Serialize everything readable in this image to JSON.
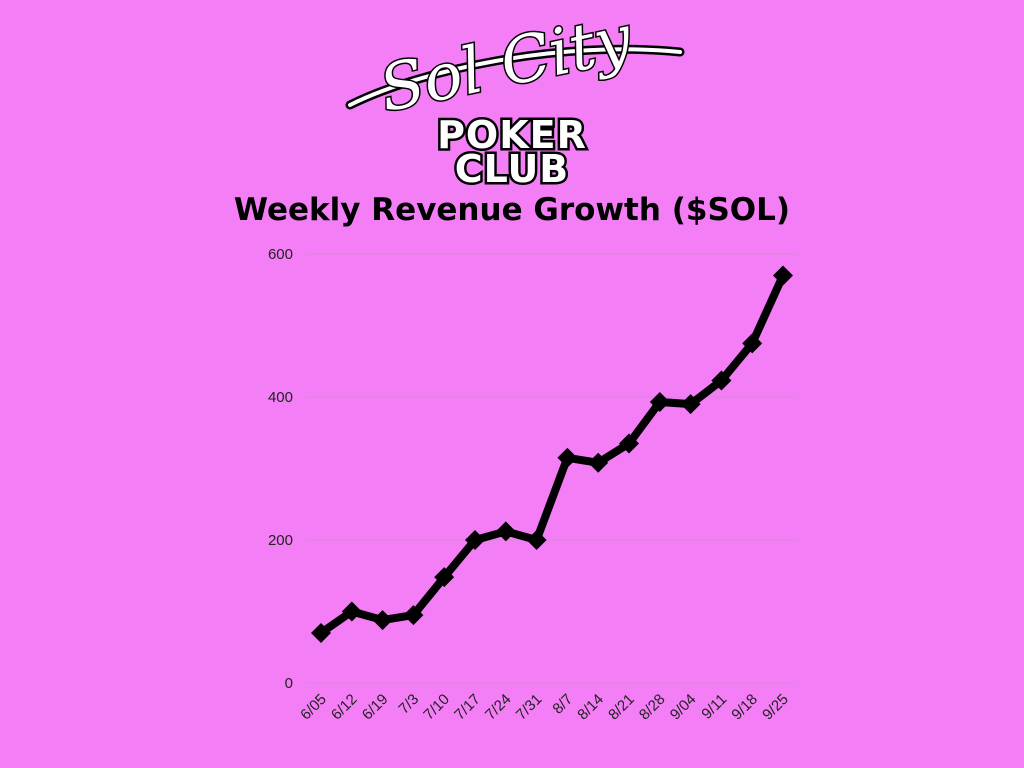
{
  "logo": {
    "script_text": "Sol City",
    "line1": "POKER",
    "line2": "CLUB"
  },
  "colors": {
    "background": "#f47ef6",
    "line": "#000000",
    "grid": "#d48ad8"
  },
  "chart_data": {
    "type": "line",
    "title": "Weekly Revenue Growth ($SOL)",
    "xlabel": "",
    "ylabel": "",
    "categories": [
      "6/05",
      "6/12",
      "6/19",
      "7/3",
      "7/10",
      "7/17",
      "7/24",
      "7/31",
      "8/7",
      "8/14",
      "8/21",
      "8/28",
      "9/04",
      "9/11",
      "9/18",
      "9/25"
    ],
    "series": [
      {
        "values": [
          70,
          100,
          88,
          95,
          148,
          200,
          212,
          200,
          315,
          308,
          335,
          393,
          390,
          423,
          475,
          570
        ]
      }
    ],
    "ylim": [
      0,
      600
    ],
    "yticks": [
      0,
      200,
      400,
      600
    ],
    "grid": true,
    "marker": "diamond",
    "legend": "none"
  }
}
